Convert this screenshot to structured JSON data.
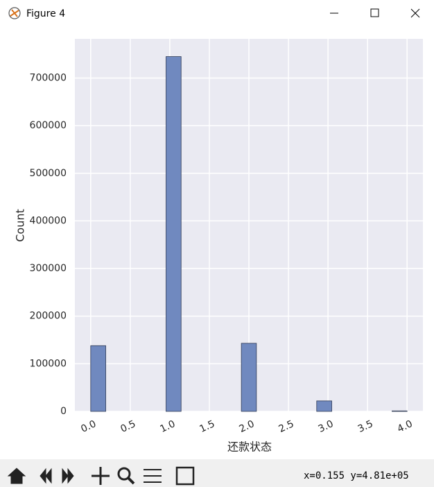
{
  "window": {
    "title": "Figure 4",
    "status": "x=0.155 y=4.81e+05"
  },
  "chart_data": {
    "type": "histogram",
    "xlabel": "还款状态",
    "ylabel": "Count",
    "bins": [
      0,
      0.1905,
      0.381,
      0.5714,
      0.7619,
      0.9524,
      1.1429,
      1.3333,
      1.5238,
      1.7143,
      1.9048,
      2.0952,
      2.2857,
      2.4762,
      2.6667,
      2.8571,
      3.0476,
      3.2381,
      3.4286,
      3.619,
      3.8095,
      4
    ],
    "values": [
      138000,
      0,
      0,
      0,
      0,
      745000,
      0,
      0,
      0,
      0,
      143000,
      0,
      0,
      0,
      0,
      22000,
      0,
      0,
      0,
      0,
      1000
    ],
    "color": "#7089bf",
    "xlim": [
      -0.2,
      4.2
    ],
    "ylim": [
      0,
      782250
    ],
    "xticks": [
      {
        "value": 0,
        "label": "0.0"
      },
      {
        "value": 0.5,
        "label": "0.5"
      },
      {
        "value": 1,
        "label": "1.0"
      },
      {
        "value": 1.5,
        "label": "1.5"
      },
      {
        "value": 2,
        "label": "2.0"
      },
      {
        "value": 2.5,
        "label": "2.5"
      },
      {
        "value": 3,
        "label": "3.0"
      },
      {
        "value": 3.5,
        "label": "3.5"
      },
      {
        "value": 4,
        "label": "4.0"
      }
    ],
    "yticks": [
      0,
      100000,
      200000,
      300000,
      400000,
      500000,
      600000,
      700000
    ],
    "grid": true
  }
}
